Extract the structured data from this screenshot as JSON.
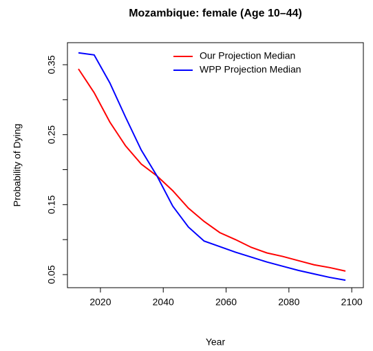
{
  "chart_data": {
    "type": "line",
    "title": "Mozambique: female (Age 10–44)",
    "x_label": "Year",
    "y_label": "Probability of Dying",
    "x": [
      2013,
      2018,
      2023,
      2028,
      2033,
      2038,
      2043,
      2048,
      2053,
      2058,
      2063,
      2068,
      2073,
      2078,
      2083,
      2088,
      2093,
      2098
    ],
    "series": [
      {
        "name": "Our Projection Median",
        "color": "#ff0000",
        "values": [
          0.344,
          0.31,
          0.268,
          0.234,
          0.208,
          0.191,
          0.17,
          0.145,
          0.126,
          0.11,
          0.1,
          0.089,
          0.081,
          0.076,
          0.07,
          0.064,
          0.06,
          0.055
        ]
      },
      {
        "name": "WPP Projection Median",
        "color": "#0000ff",
        "values": [
          0.367,
          0.364,
          0.324,
          0.275,
          0.228,
          0.191,
          0.148,
          0.118,
          0.098,
          0.09,
          0.082,
          0.075,
          0.068,
          0.062,
          0.056,
          0.051,
          0.046,
          0.042
        ]
      }
    ],
    "xlim": [
      2009.5,
      2103.7
    ],
    "ylim": [
      0.0313,
      0.3815
    ],
    "xticks": [
      2020,
      2040,
      2060,
      2080,
      2100
    ],
    "yticks": [
      0.05,
      0.15,
      0.25,
      0.35
    ],
    "yminor": [
      0.1,
      0.2,
      0.3
    ],
    "legend": "top-right"
  }
}
